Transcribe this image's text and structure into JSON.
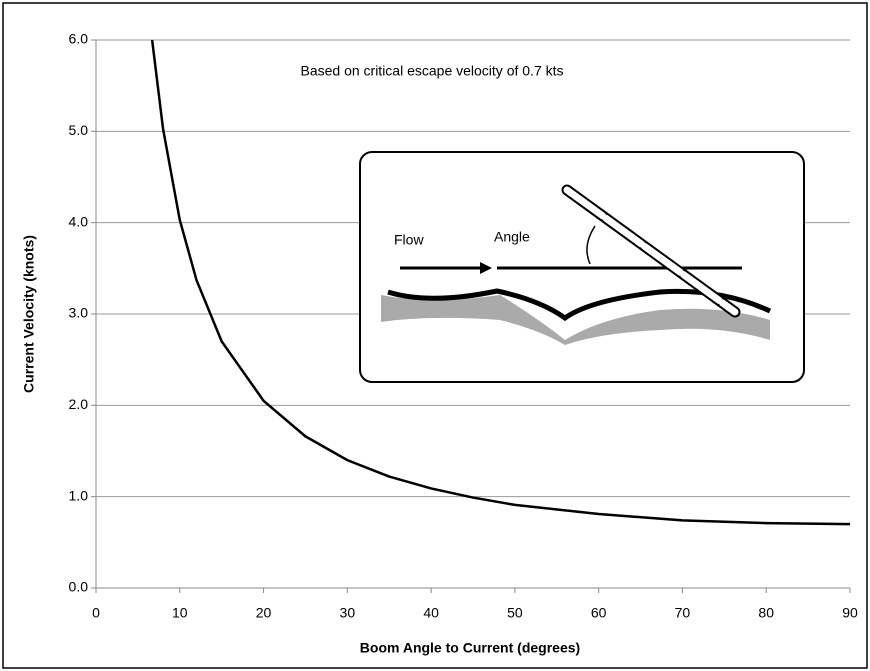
{
  "chart_data": {
    "type": "line",
    "annotation": "Based on critical escape velocity of 0.7 kts",
    "inset_labels": [
      "Flow",
      "Angle"
    ],
    "xlabel": "Boom Angle to Current (degrees)",
    "ylabel": "Current Velocity (knots)",
    "x": [
      6.7,
      8,
      10,
      12,
      15,
      20,
      25,
      30,
      35,
      40,
      45,
      50,
      60,
      70,
      80,
      90
    ],
    "series": [
      {
        "color": "#000000",
        "values": [
          6.0,
          5.03,
          4.03,
          3.37,
          2.7,
          2.05,
          1.66,
          1.4,
          1.22,
          1.09,
          0.99,
          0.91,
          0.81,
          0.74,
          0.71,
          0.7
        ]
      }
    ],
    "xlim": [
      0,
      90
    ],
    "xticks": [
      0,
      10,
      20,
      30,
      40,
      50,
      60,
      70,
      80,
      90
    ],
    "ylim": [
      0,
      6
    ],
    "yticks": [
      {
        "value": 0,
        "label": "0.0"
      },
      {
        "value": 1,
        "label": "1.0"
      },
      {
        "value": 2,
        "label": "2.0"
      },
      {
        "value": 3,
        "label": "3.0"
      },
      {
        "value": 4,
        "label": "4.0"
      },
      {
        "value": 5,
        "label": "5.0"
      },
      {
        "value": 6,
        "label": "6.0"
      }
    ],
    "grid": true
  }
}
